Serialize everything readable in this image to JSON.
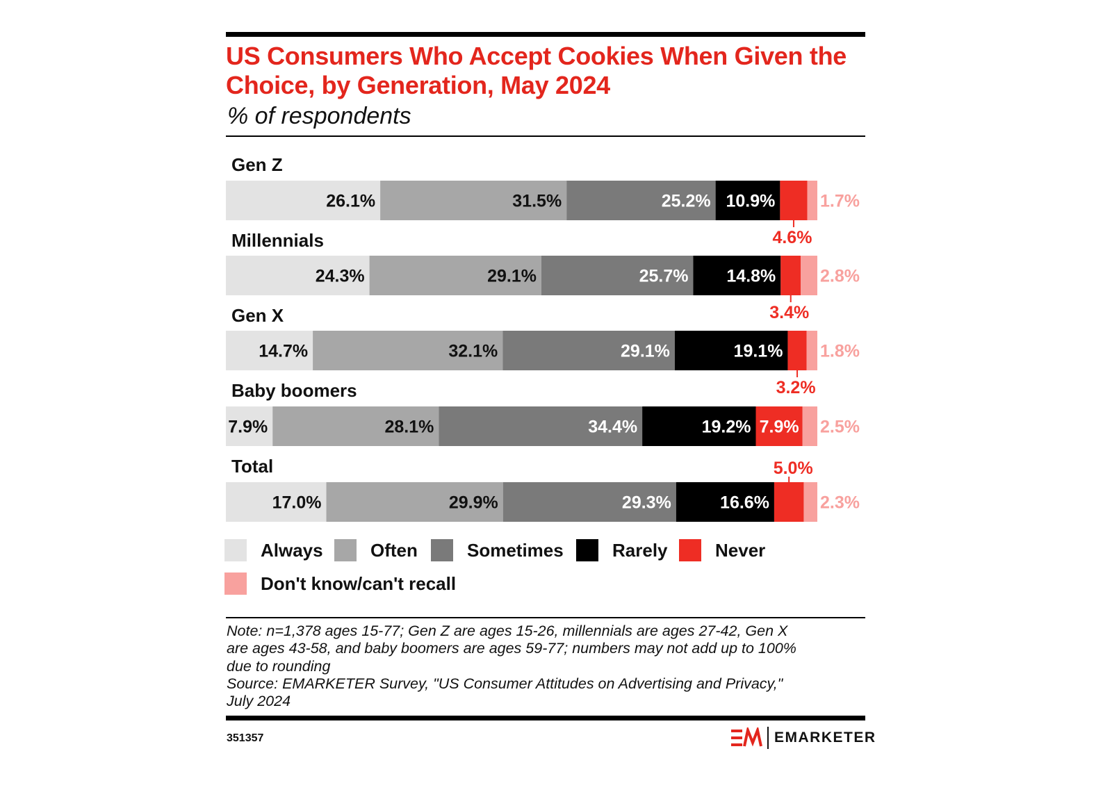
{
  "header": {
    "title": "US Consumers Who Accept Cookies When Given the Choice, by Generation, May 2024",
    "subtitle": "% of respondents"
  },
  "chart_data": {
    "type": "bar",
    "orientation": "horizontal",
    "stacked": true,
    "title": "US Consumers Who Accept Cookies When Given the Choice, by Generation, May 2024",
    "subtitle": "% of respondents",
    "categories": [
      "Gen Z",
      "Millennials",
      "Gen X",
      "Baby boomers",
      "Total"
    ],
    "series": [
      {
        "name": "Always",
        "color": "#e3e3e3",
        "values": [
          26.1,
          24.3,
          14.7,
          7.9,
          17.0
        ],
        "labels": [
          "26.1%",
          "24.3%",
          "14.7%",
          "7.9%",
          "17.0%"
        ]
      },
      {
        "name": "Often",
        "color": "#a7a7a7",
        "values": [
          31.5,
          29.1,
          32.1,
          28.1,
          29.9
        ],
        "labels": [
          "31.5%",
          "29.1%",
          "32.1%",
          "28.1%",
          "29.9%"
        ]
      },
      {
        "name": "Sometimes",
        "color": "#7a7a7a",
        "values": [
          25.2,
          25.7,
          29.1,
          34.4,
          29.3
        ],
        "labels": [
          "25.2%",
          "25.7%",
          "29.1%",
          "34.4%",
          "29.3%"
        ]
      },
      {
        "name": "Rarely",
        "color": "#000000",
        "values": [
          10.9,
          14.8,
          19.1,
          19.2,
          16.6
        ],
        "labels": [
          "10.9%",
          "14.8%",
          "19.1%",
          "19.2%",
          "16.6%"
        ]
      },
      {
        "name": "Never",
        "color": "#ee2d24",
        "values": [
          4.6,
          3.4,
          3.2,
          7.9,
          5.0
        ],
        "labels": [
          "4.6%",
          "3.4%",
          "3.2%",
          "7.9%",
          "5.0%"
        ]
      },
      {
        "name": "Don't know/can't recall",
        "color": "#f8a19e",
        "values": [
          1.7,
          2.8,
          1.8,
          2.5,
          2.3
        ],
        "labels": [
          "1.7%",
          "2.8%",
          "1.8%",
          "2.5%",
          "2.3%"
        ]
      }
    ],
    "xlim": [
      0,
      100
    ],
    "grid": false,
    "legend": "bottom"
  },
  "legend": {
    "items": [
      {
        "label": "Always",
        "color": "#e3e3e3"
      },
      {
        "label": "Often",
        "color": "#a7a7a7"
      },
      {
        "label": "Sometimes",
        "color": "#7a7a7a"
      },
      {
        "label": "Rarely",
        "color": "#000000"
      },
      {
        "label": "Never",
        "color": "#ee2d24"
      },
      {
        "label": "Don't know/can't recall",
        "color": "#f8a19e"
      }
    ]
  },
  "footer": {
    "note_lines": [
      "Note: n=1,378 ages 15-77; Gen Z are ages 15-26, millennials are ages 27-42, Gen X",
      "are ages 43-58, and baby boomers are ages 59-77; numbers may not add up to 100%",
      "due to rounding",
      "Source: EMARKETER Survey, \"US Consumer Attitudes on Advertising and Privacy,\"",
      "July 2024"
    ],
    "chart_id": "351357",
    "brand": "EMARKETER",
    "brand_color": "#e3261d"
  }
}
